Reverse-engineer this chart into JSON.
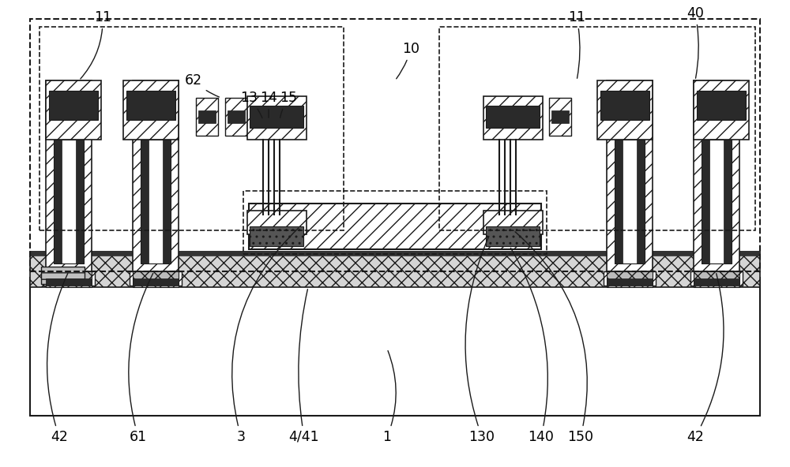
{
  "bg": "#ffffff",
  "lc": "#1a1a1a",
  "dc": "#2a2a2a",
  "hc": "#606060",
  "figw": 10.0,
  "figh": 5.92,
  "dpi": 100
}
